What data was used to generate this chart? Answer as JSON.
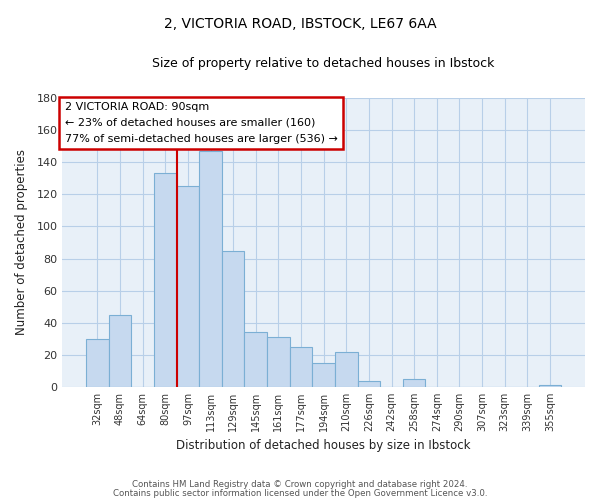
{
  "title1": "2, VICTORIA ROAD, IBSTOCK, LE67 6AA",
  "title2": "Size of property relative to detached houses in Ibstock",
  "xlabel": "Distribution of detached houses by size in Ibstock",
  "ylabel": "Number of detached properties",
  "bar_labels": [
    "32sqm",
    "48sqm",
    "64sqm",
    "80sqm",
    "97sqm",
    "113sqm",
    "129sqm",
    "145sqm",
    "161sqm",
    "177sqm",
    "194sqm",
    "210sqm",
    "226sqm",
    "242sqm",
    "258sqm",
    "274sqm",
    "290sqm",
    "307sqm",
    "323sqm",
    "339sqm",
    "355sqm"
  ],
  "bar_values": [
    30,
    45,
    0,
    133,
    125,
    147,
    85,
    34,
    31,
    25,
    15,
    22,
    4,
    0,
    5,
    0,
    0,
    0,
    0,
    0,
    1
  ],
  "bar_color": "#c6d9ef",
  "bar_edgecolor": "#7bafd4",
  "ylim": [
    0,
    180
  ],
  "yticks": [
    0,
    20,
    40,
    60,
    80,
    100,
    120,
    140,
    160,
    180
  ],
  "property_line_x": 3.5,
  "annotation_title": "2 VICTORIA ROAD: 90sqm",
  "annotation_line1": "← 23% of detached houses are smaller (160)",
  "annotation_line2": "77% of semi-detached houses are larger (536) →",
  "annotation_box_color": "#ffffff",
  "annotation_box_edgecolor": "#cc0000",
  "property_line_color": "#cc0000",
  "footer1": "Contains HM Land Registry data © Crown copyright and database right 2024.",
  "footer2": "Contains public sector information licensed under the Open Government Licence v3.0.",
  "bg_color": "#e8f0f8"
}
